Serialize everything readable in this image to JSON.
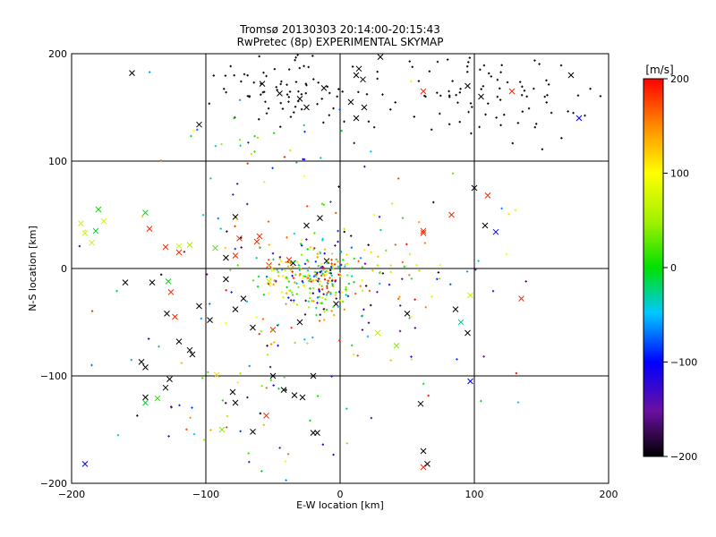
{
  "chart_data": {
    "type": "scatter",
    "title": "Tromsø 20130303 20:14:00-20:15:43",
    "subtitle": "RwPretec (8p) EXPERIMENTAL SKYMAP",
    "xlabel": "E-W location [km]",
    "ylabel": "N-S location [km]",
    "xlim": [
      -200,
      200
    ],
    "ylim": [
      -200,
      200
    ],
    "x_ticks": [
      -200,
      -100,
      0,
      100,
      200
    ],
    "y_ticks": [
      -200,
      -100,
      0,
      100,
      200
    ],
    "x_tick_labels": [
      "−200",
      "−100",
      "0",
      "100",
      "200"
    ],
    "y_tick_labels": [
      "−200",
      "−100",
      "0",
      "100",
      "200"
    ],
    "grid": true,
    "colorbar": {
      "label": "[m/s]",
      "range": [
        -200,
        200
      ],
      "ticks": [
        200,
        100,
        0,
        -100,
        -200
      ],
      "tick_labels": [
        "200",
        "100",
        "0",
        "−100",
        "−200"
      ],
      "colormap": "rainbow (black-purple-blue-cyan-green-yellow-red)"
    },
    "marker_sets": [
      {
        "marker": "cross",
        "points": [
          [
            -155,
            182,
            -200
          ],
          [
            -105,
            134,
            -200
          ],
          [
            -58,
            172,
            -200
          ],
          [
            -45,
            163,
            -200
          ],
          [
            -30,
            158,
            -200
          ],
          [
            -25,
            150,
            -200
          ],
          [
            -12,
            168,
            -200
          ],
          [
            8,
            155,
            -200
          ],
          [
            12,
            180,
            -200
          ],
          [
            14,
            186,
            -200
          ],
          [
            17,
            176,
            -200
          ],
          [
            18,
            150,
            -200
          ],
          [
            12,
            140,
            -200
          ],
          [
            30,
            197,
            -200
          ],
          [
            62,
            165,
            185
          ],
          [
            95,
            170,
            -200
          ],
          [
            105,
            160,
            -200
          ],
          [
            128,
            165,
            185
          ],
          [
            172,
            180,
            -200
          ],
          [
            178,
            140,
            -100
          ],
          [
            100,
            75,
            -200
          ],
          [
            110,
            68,
            185
          ],
          [
            108,
            40,
            -200
          ],
          [
            116,
            34,
            -100
          ],
          [
            83,
            50,
            185
          ],
          [
            62,
            35,
            185
          ],
          [
            -15,
            47,
            -200
          ],
          [
            -25,
            40,
            -200
          ],
          [
            -60,
            30,
            185
          ],
          [
            -78,
            48,
            -200
          ],
          [
            -180,
            55,
            0
          ],
          [
            -193,
            42,
            70
          ],
          [
            -190,
            33,
            70
          ],
          [
            -182,
            35,
            -10
          ],
          [
            -185,
            24,
            70
          ],
          [
            -176,
            44,
            70
          ],
          [
            -145,
            52,
            0
          ],
          [
            -142,
            37,
            185
          ],
          [
            -130,
            20,
            185
          ],
          [
            -120,
            21,
            70
          ],
          [
            -120,
            15,
            185
          ],
          [
            -112,
            22,
            50
          ],
          [
            -93,
            19,
            20
          ],
          [
            -85,
            10,
            -200
          ],
          [
            -85,
            -10,
            -200
          ],
          [
            -78,
            12,
            185
          ],
          [
            -62,
            25,
            185
          ],
          [
            -75,
            28,
            185
          ],
          [
            -53,
            3,
            185
          ],
          [
            -160,
            -13,
            -200
          ],
          [
            -140,
            -13,
            -200
          ],
          [
            -128,
            -12,
            0
          ],
          [
            -126,
            -22,
            185
          ],
          [
            -129,
            -42,
            -200
          ],
          [
            -123,
            -45,
            185
          ],
          [
            -105,
            -35,
            -200
          ],
          [
            -97,
            -48,
            -200
          ],
          [
            -78,
            -38,
            -200
          ],
          [
            -72,
            -28,
            -200
          ],
          [
            -65,
            -55,
            -200
          ],
          [
            -50,
            -57,
            185
          ],
          [
            -30,
            -50,
            -200
          ],
          [
            -120,
            -68,
            -200
          ],
          [
            -110,
            -80,
            -200
          ],
          [
            -112,
            -76,
            -200
          ],
          [
            -148,
            -87,
            -200
          ],
          [
            -145,
            -92,
            -200
          ],
          [
            -92,
            -99,
            120
          ],
          [
            -130,
            -111,
            -200
          ],
          [
            -127,
            -103,
            -200
          ],
          [
            -145,
            -120,
            -200
          ],
          [
            -145,
            -125,
            -10
          ],
          [
            -136,
            -121,
            10
          ],
          [
            -80,
            -115,
            -200
          ],
          [
            -78,
            -125,
            -200
          ],
          [
            -55,
            -137,
            185
          ],
          [
            -42,
            -113,
            -200
          ],
          [
            -34,
            -118,
            -200
          ],
          [
            -28,
            -120,
            -200
          ],
          [
            -50,
            -100,
            -200
          ],
          [
            -20,
            -100,
            -200
          ],
          [
            -17,
            -153,
            -200
          ],
          [
            -20,
            -153,
            -200
          ],
          [
            -65,
            -152,
            -200
          ],
          [
            -88,
            -150,
            40
          ],
          [
            -190,
            -182,
            -100
          ],
          [
            28,
            -60,
            60
          ],
          [
            42,
            -72,
            40
          ],
          [
            60,
            -126,
            -200
          ],
          [
            62,
            -170,
            -200
          ],
          [
            62,
            -185,
            185
          ],
          [
            65,
            -182,
            -200
          ],
          [
            86,
            -38,
            -200
          ],
          [
            90,
            -50,
            -30
          ],
          [
            97,
            -25,
            70
          ],
          [
            97,
            -105,
            -100
          ],
          [
            135,
            -28,
            185
          ],
          [
            95,
            -60,
            -200
          ],
          [
            50,
            -42,
            -200
          ],
          [
            -3,
            -33,
            -200
          ],
          [
            -10,
            7,
            -200
          ],
          [
            -35,
            5,
            -200
          ],
          [
            -38,
            8,
            185
          ],
          [
            62,
            33,
            185
          ],
          [
            -53,
            -12,
            60
          ]
        ]
      },
      {
        "marker": "dot",
        "seed": 20130303,
        "clusters": [
          {
            "count": 200,
            "center": [
              -20,
              -10
            ],
            "spread": [
              18,
              14
            ],
            "vmin": -120,
            "vmax": 200
          },
          {
            "count": 130,
            "center": [
              -5,
              -5
            ],
            "spread": [
              45,
              32
            ],
            "vmin": -200,
            "vmax": 200
          },
          {
            "count": 110,
            "center": [
              -20,
              -20
            ],
            "spread": [
              85,
              80
            ],
            "vmin": -200,
            "vmax": 200
          },
          {
            "count": 80,
            "center": [
              -40,
              168
            ],
            "spread": [
              28,
              22
            ],
            "vmin": -200,
            "vmax": -190
          },
          {
            "count": 95,
            "center": [
              110,
              165
            ],
            "spread": [
              40,
              22
            ],
            "vmin": -200,
            "vmax": -190
          },
          {
            "count": 25,
            "center": [
              -60,
              130
            ],
            "spread": [
              30,
              20
            ],
            "vmin": -120,
            "vmax": 60
          },
          {
            "count": 40,
            "center": [
              -80,
              -130
            ],
            "spread": [
              35,
              40
            ],
            "vmin": -200,
            "vmax": 200
          }
        ]
      }
    ]
  }
}
